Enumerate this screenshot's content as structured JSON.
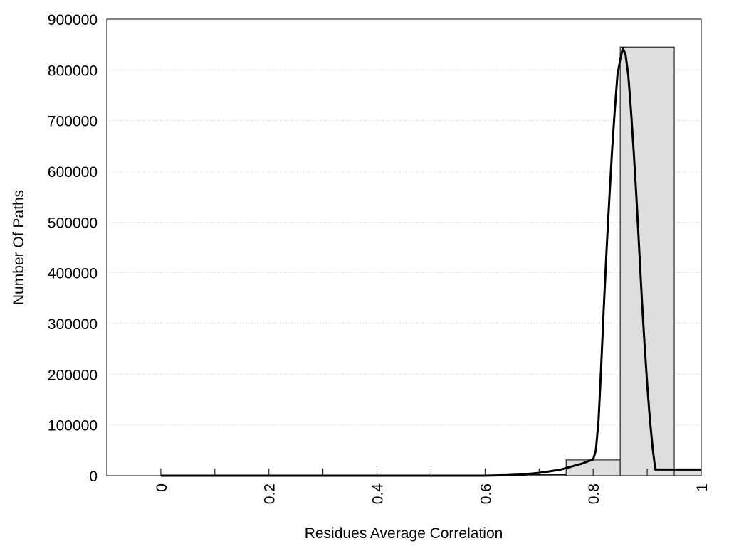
{
  "chart_data": {
    "type": "bar",
    "title": "",
    "xlabel": "Residues Average Correlation",
    "ylabel": "Number Of Paths",
    "xlim": [
      -0.1,
      1.0
    ],
    "ylim": [
      0,
      900000
    ],
    "x_ticks": [
      0,
      0.2,
      0.4,
      0.6,
      0.8,
      1
    ],
    "x_tick_labels": [
      "0",
      "0.2",
      "0.4",
      "0.6",
      "0.8",
      "1"
    ],
    "y_ticks": [
      0,
      100000,
      200000,
      300000,
      400000,
      500000,
      600000,
      700000,
      800000,
      900000
    ],
    "y_tick_labels": [
      "0",
      "100000",
      "200000",
      "300000",
      "400000",
      "500000",
      "600000",
      "700000",
      "800000",
      "900000"
    ],
    "grid": "horizontal dotted",
    "bars": [
      {
        "x0": 0.0,
        "x1": 0.1,
        "value": 0
      },
      {
        "x0": 0.1,
        "x1": 0.2,
        "value": 0
      },
      {
        "x0": 0.2,
        "x1": 0.3,
        "value": 0
      },
      {
        "x0": 0.3,
        "x1": 0.4,
        "value": 0
      },
      {
        "x0": 0.4,
        "x1": 0.5,
        "value": 0
      },
      {
        "x0": 0.5,
        "x1": 0.6,
        "value": 0
      },
      {
        "x0": 0.6,
        "x1": 0.65,
        "value": 0
      },
      {
        "x0": 0.65,
        "x1": 0.75,
        "value": 2000
      },
      {
        "x0": 0.75,
        "x1": 0.85,
        "value": 31000
      },
      {
        "x0": 0.85,
        "x1": 0.95,
        "value": 845000
      },
      {
        "x0": 0.95,
        "x1": 1.0,
        "value": 11000
      }
    ],
    "fit_curve": {
      "x": [
        0.0,
        0.55,
        0.6,
        0.64,
        0.66,
        0.68,
        0.7,
        0.72,
        0.74,
        0.76,
        0.78,
        0.8,
        0.805,
        0.81,
        0.815,
        0.82,
        0.825,
        0.83,
        0.835,
        0.84,
        0.845,
        0.85,
        0.855,
        0.86,
        0.865,
        0.87,
        0.875,
        0.88,
        0.885,
        0.89,
        0.895,
        0.9,
        0.905,
        0.91,
        0.915,
        0.92,
        0.925,
        0.93,
        0.935,
        0.94,
        0.945,
        0.95,
        0.955,
        0.96,
        0.965,
        0.97,
        0.975,
        0.98,
        0.985,
        0.99,
        0.995,
        1.0
      ],
      "y": [
        0,
        0,
        0,
        1000,
        2000,
        3500,
        5500,
        8500,
        12000,
        18000,
        24000,
        32000,
        50000,
        110000,
        220000,
        340000,
        450000,
        550000,
        640000,
        720000,
        790000,
        820000,
        843000,
        830000,
        790000,
        720000,
        640000,
        550000,
        450000,
        350000,
        260000,
        180000,
        110000,
        55000,
        12000,
        12000,
        12000,
        12000,
        12000,
        12000,
        12000,
        12000,
        12000,
        12000,
        12000,
        12000,
        12000,
        12000,
        12000,
        12000,
        12000,
        12000
      ]
    }
  }
}
